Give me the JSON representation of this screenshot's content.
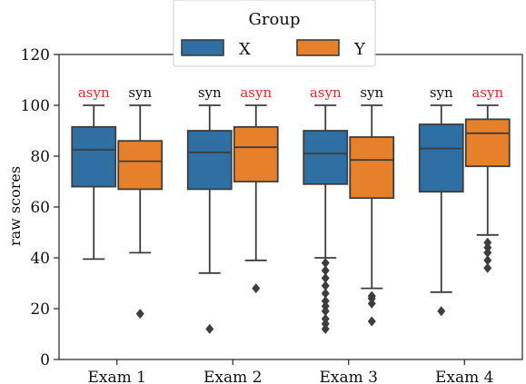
{
  "chart_data": {
    "type": "boxplot",
    "categories": [
      "Exam 1",
      "Exam 2",
      "Exam 3",
      "Exam 4"
    ],
    "ylabel": "raw scores",
    "ylim": [
      0,
      120
    ],
    "yticks": [
      0,
      20,
      40,
      60,
      80,
      100,
      120
    ],
    "legend": {
      "title": "Group",
      "placement": "top-center"
    },
    "series": [
      {
        "name": "X",
        "color": "#2f6fa3",
        "boxes": [
          {
            "q1": 68,
            "median": 82.5,
            "q3": 91.5,
            "whisker_low": 39.5,
            "whisker_high": 100,
            "outliers": []
          },
          {
            "q1": 67,
            "median": 81.5,
            "q3": 90,
            "whisker_low": 34,
            "whisker_high": 100,
            "outliers": [
              12
            ]
          },
          {
            "q1": 69,
            "median": 81,
            "q3": 90,
            "whisker_low": 40,
            "whisker_high": 100,
            "outliers": [
              12,
              14,
              16,
              19,
              21,
              23,
              26,
              29,
              32,
              35,
              38
            ]
          },
          {
            "q1": 66,
            "median": 83,
            "q3": 92.5,
            "whisker_low": 26.5,
            "whisker_high": 100,
            "outliers": [
              19
            ]
          }
        ]
      },
      {
        "name": "Y",
        "color": "#e6802a",
        "boxes": [
          {
            "q1": 67,
            "median": 78,
            "q3": 86,
            "whisker_low": 42,
            "whisker_high": 100,
            "outliers": [
              18
            ]
          },
          {
            "q1": 70,
            "median": 83.5,
            "q3": 91.5,
            "whisker_low": 39,
            "whisker_high": 100,
            "outliers": [
              28
            ]
          },
          {
            "q1": 63.5,
            "median": 78.5,
            "q3": 87.5,
            "whisker_low": 28,
            "whisker_high": 100,
            "outliers": [
              15,
              22,
              24,
              25
            ]
          },
          {
            "q1": 76,
            "median": 89,
            "q3": 94.5,
            "whisker_low": 49,
            "whisker_high": 100,
            "outliers": [
              36,
              39,
              42,
              44,
              46
            ]
          }
        ]
      }
    ],
    "annotations": [
      {
        "category": "Exam 1",
        "series": "X",
        "text": "asyn",
        "color": "#e8272b"
      },
      {
        "category": "Exam 1",
        "series": "Y",
        "text": "syn",
        "color": "#111111"
      },
      {
        "category": "Exam 2",
        "series": "X",
        "text": "syn",
        "color": "#111111"
      },
      {
        "category": "Exam 2",
        "series": "Y",
        "text": "asyn",
        "color": "#e8272b"
      },
      {
        "category": "Exam 3",
        "series": "X",
        "text": "asyn",
        "color": "#e8272b"
      },
      {
        "category": "Exam 3",
        "series": "Y",
        "text": "syn",
        "color": "#111111"
      },
      {
        "category": "Exam 4",
        "series": "X",
        "text": "syn",
        "color": "#111111"
      },
      {
        "category": "Exam 4",
        "series": "Y",
        "text": "asyn",
        "color": "#e8272b"
      }
    ]
  }
}
